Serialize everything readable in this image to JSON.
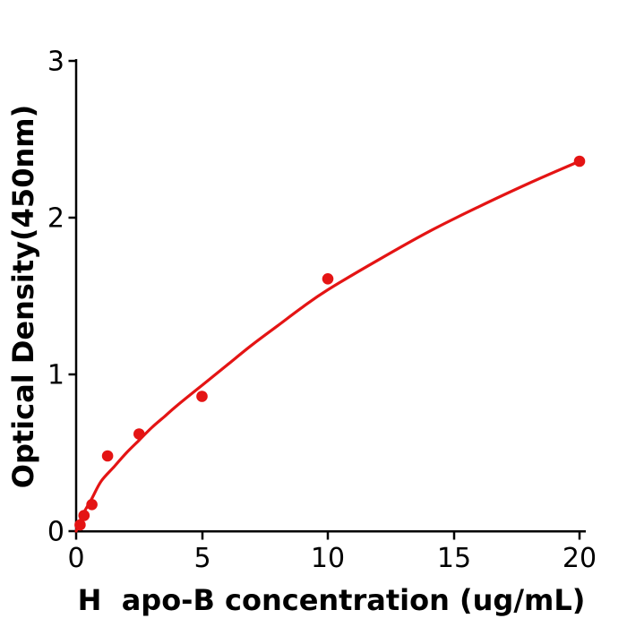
{
  "chart_data": {
    "type": "scatter",
    "title": "",
    "xlabel": "H  apo-B concentration (ug/mL)",
    "ylabel": "Optical Density(450nm)",
    "xlim": [
      0,
      20.2
    ],
    "ylim": [
      0,
      3.01
    ],
    "x_ticks": [
      "0",
      "5",
      "10",
      "15",
      "20"
    ],
    "y_ticks": [
      "0",
      "1",
      "2",
      "3"
    ],
    "grid": false,
    "legend": "none",
    "accent_color": "#e41414",
    "axis_color": "#000000",
    "series": [
      {
        "name": "fit-curve",
        "type": "line",
        "color": "#e41414",
        "x": [
          0,
          0.16,
          0.31,
          0.63,
          1,
          1.5,
          2,
          2.5,
          3,
          3.5,
          4,
          5,
          6,
          7,
          8,
          9,
          10,
          12,
          14,
          16,
          18,
          20
        ],
        "od": [
          0,
          0.07,
          0.12,
          0.21,
          0.32,
          0.41,
          0.5,
          0.58,
          0.66,
          0.73,
          0.8,
          0.93,
          1.06,
          1.19,
          1.31,
          1.43,
          1.54,
          1.73,
          1.91,
          2.07,
          2.22,
          2.36
        ]
      },
      {
        "name": "standard-points",
        "type": "scatter",
        "color": "#e41414",
        "x": [
          0.156,
          0.3125,
          0.625,
          1.25,
          2.5,
          5,
          10,
          20
        ],
        "od": [
          0.04,
          0.1,
          0.17,
          0.48,
          0.62,
          0.86,
          1.61,
          2.36
        ]
      }
    ]
  }
}
